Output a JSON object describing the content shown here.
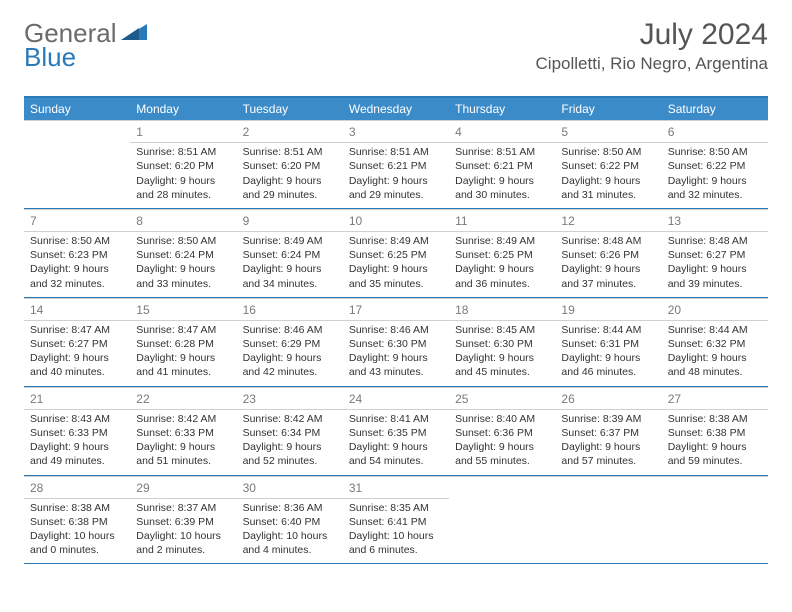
{
  "logo": {
    "text1": "General",
    "text2": "Blue"
  },
  "title": "July 2024",
  "location": "Cipolletti, Rio Negro, Argentina",
  "dow": [
    "Sunday",
    "Monday",
    "Tuesday",
    "Wednesday",
    "Thursday",
    "Friday",
    "Saturday"
  ],
  "colors": {
    "header_bg": "#3b8bc9",
    "border": "#2a7ab9"
  },
  "weeks": [
    [
      null,
      {
        "n": "1",
        "sr": "8:51 AM",
        "ss": "6:20 PM",
        "dl": "9 hours and 28 minutes."
      },
      {
        "n": "2",
        "sr": "8:51 AM",
        "ss": "6:20 PM",
        "dl": "9 hours and 29 minutes."
      },
      {
        "n": "3",
        "sr": "8:51 AM",
        "ss": "6:21 PM",
        "dl": "9 hours and 29 minutes."
      },
      {
        "n": "4",
        "sr": "8:51 AM",
        "ss": "6:21 PM",
        "dl": "9 hours and 30 minutes."
      },
      {
        "n": "5",
        "sr": "8:50 AM",
        "ss": "6:22 PM",
        "dl": "9 hours and 31 minutes."
      },
      {
        "n": "6",
        "sr": "8:50 AM",
        "ss": "6:22 PM",
        "dl": "9 hours and 32 minutes."
      }
    ],
    [
      {
        "n": "7",
        "sr": "8:50 AM",
        "ss": "6:23 PM",
        "dl": "9 hours and 32 minutes."
      },
      {
        "n": "8",
        "sr": "8:50 AM",
        "ss": "6:24 PM",
        "dl": "9 hours and 33 minutes."
      },
      {
        "n": "9",
        "sr": "8:49 AM",
        "ss": "6:24 PM",
        "dl": "9 hours and 34 minutes."
      },
      {
        "n": "10",
        "sr": "8:49 AM",
        "ss": "6:25 PM",
        "dl": "9 hours and 35 minutes."
      },
      {
        "n": "11",
        "sr": "8:49 AM",
        "ss": "6:25 PM",
        "dl": "9 hours and 36 minutes."
      },
      {
        "n": "12",
        "sr": "8:48 AM",
        "ss": "6:26 PM",
        "dl": "9 hours and 37 minutes."
      },
      {
        "n": "13",
        "sr": "8:48 AM",
        "ss": "6:27 PM",
        "dl": "9 hours and 39 minutes."
      }
    ],
    [
      {
        "n": "14",
        "sr": "8:47 AM",
        "ss": "6:27 PM",
        "dl": "9 hours and 40 minutes."
      },
      {
        "n": "15",
        "sr": "8:47 AM",
        "ss": "6:28 PM",
        "dl": "9 hours and 41 minutes."
      },
      {
        "n": "16",
        "sr": "8:46 AM",
        "ss": "6:29 PM",
        "dl": "9 hours and 42 minutes."
      },
      {
        "n": "17",
        "sr": "8:46 AM",
        "ss": "6:30 PM",
        "dl": "9 hours and 43 minutes."
      },
      {
        "n": "18",
        "sr": "8:45 AM",
        "ss": "6:30 PM",
        "dl": "9 hours and 45 minutes."
      },
      {
        "n": "19",
        "sr": "8:44 AM",
        "ss": "6:31 PM",
        "dl": "9 hours and 46 minutes."
      },
      {
        "n": "20",
        "sr": "8:44 AM",
        "ss": "6:32 PM",
        "dl": "9 hours and 48 minutes."
      }
    ],
    [
      {
        "n": "21",
        "sr": "8:43 AM",
        "ss": "6:33 PM",
        "dl": "9 hours and 49 minutes."
      },
      {
        "n": "22",
        "sr": "8:42 AM",
        "ss": "6:33 PM",
        "dl": "9 hours and 51 minutes."
      },
      {
        "n": "23",
        "sr": "8:42 AM",
        "ss": "6:34 PM",
        "dl": "9 hours and 52 minutes."
      },
      {
        "n": "24",
        "sr": "8:41 AM",
        "ss": "6:35 PM",
        "dl": "9 hours and 54 minutes."
      },
      {
        "n": "25",
        "sr": "8:40 AM",
        "ss": "6:36 PM",
        "dl": "9 hours and 55 minutes."
      },
      {
        "n": "26",
        "sr": "8:39 AM",
        "ss": "6:37 PM",
        "dl": "9 hours and 57 minutes."
      },
      {
        "n": "27",
        "sr": "8:38 AM",
        "ss": "6:38 PM",
        "dl": "9 hours and 59 minutes."
      }
    ],
    [
      {
        "n": "28",
        "sr": "8:38 AM",
        "ss": "6:38 PM",
        "dl": "10 hours and 0 minutes."
      },
      {
        "n": "29",
        "sr": "8:37 AM",
        "ss": "6:39 PM",
        "dl": "10 hours and 2 minutes."
      },
      {
        "n": "30",
        "sr": "8:36 AM",
        "ss": "6:40 PM",
        "dl": "10 hours and 4 minutes."
      },
      {
        "n": "31",
        "sr": "8:35 AM",
        "ss": "6:41 PM",
        "dl": "10 hours and 6 minutes."
      },
      null,
      null,
      null
    ]
  ]
}
